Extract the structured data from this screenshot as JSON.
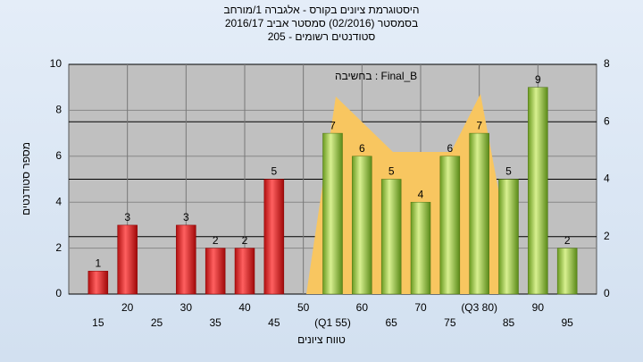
{
  "chart_data": {
    "type": "bar",
    "title": "היסטוגרמת ציונים בקורס - אלגברה 1/מורחב",
    "subtitle": "בסמסטר  (02/2016)  סמסטר אביב 2016/17",
    "subtitle2": "סטודנטים רשומים - 205",
    "annotation": "בחשיבה : Final_B",
    "xlabel": "טווח ציונים",
    "ylabel": "מספר סטודנטים",
    "x": [
      15,
      20,
      25,
      30,
      35,
      40,
      45,
      50,
      55,
      60,
      65,
      70,
      75,
      80,
      85,
      90,
      95
    ],
    "values": [
      1,
      3,
      null,
      3,
      2,
      2,
      5,
      null,
      7,
      6,
      5,
      4,
      6,
      7,
      5,
      9,
      2
    ],
    "colors": [
      "red",
      "red",
      "red",
      "red",
      "red",
      "red",
      "red",
      "green",
      "green",
      "green",
      "green",
      "green",
      "green",
      "green",
      "green",
      "green",
      "green"
    ],
    "xlim": [
      10,
      100
    ],
    "xticks": [
      15,
      20,
      25,
      30,
      35,
      40,
      45,
      50,
      {
        "value": 55,
        "label": "(Q1 55)"
      },
      60,
      65,
      70,
      75,
      {
        "value": 80,
        "label": "(Q3 80)"
      },
      85,
      90,
      95
    ],
    "ylim": [
      0,
      10
    ],
    "yticks": [
      0,
      2,
      4,
      6,
      8,
      10
    ],
    "y2lim": [
      0,
      8
    ],
    "y2ticks": [
      0,
      2,
      4,
      6,
      8
    ],
    "grid": true
  }
}
